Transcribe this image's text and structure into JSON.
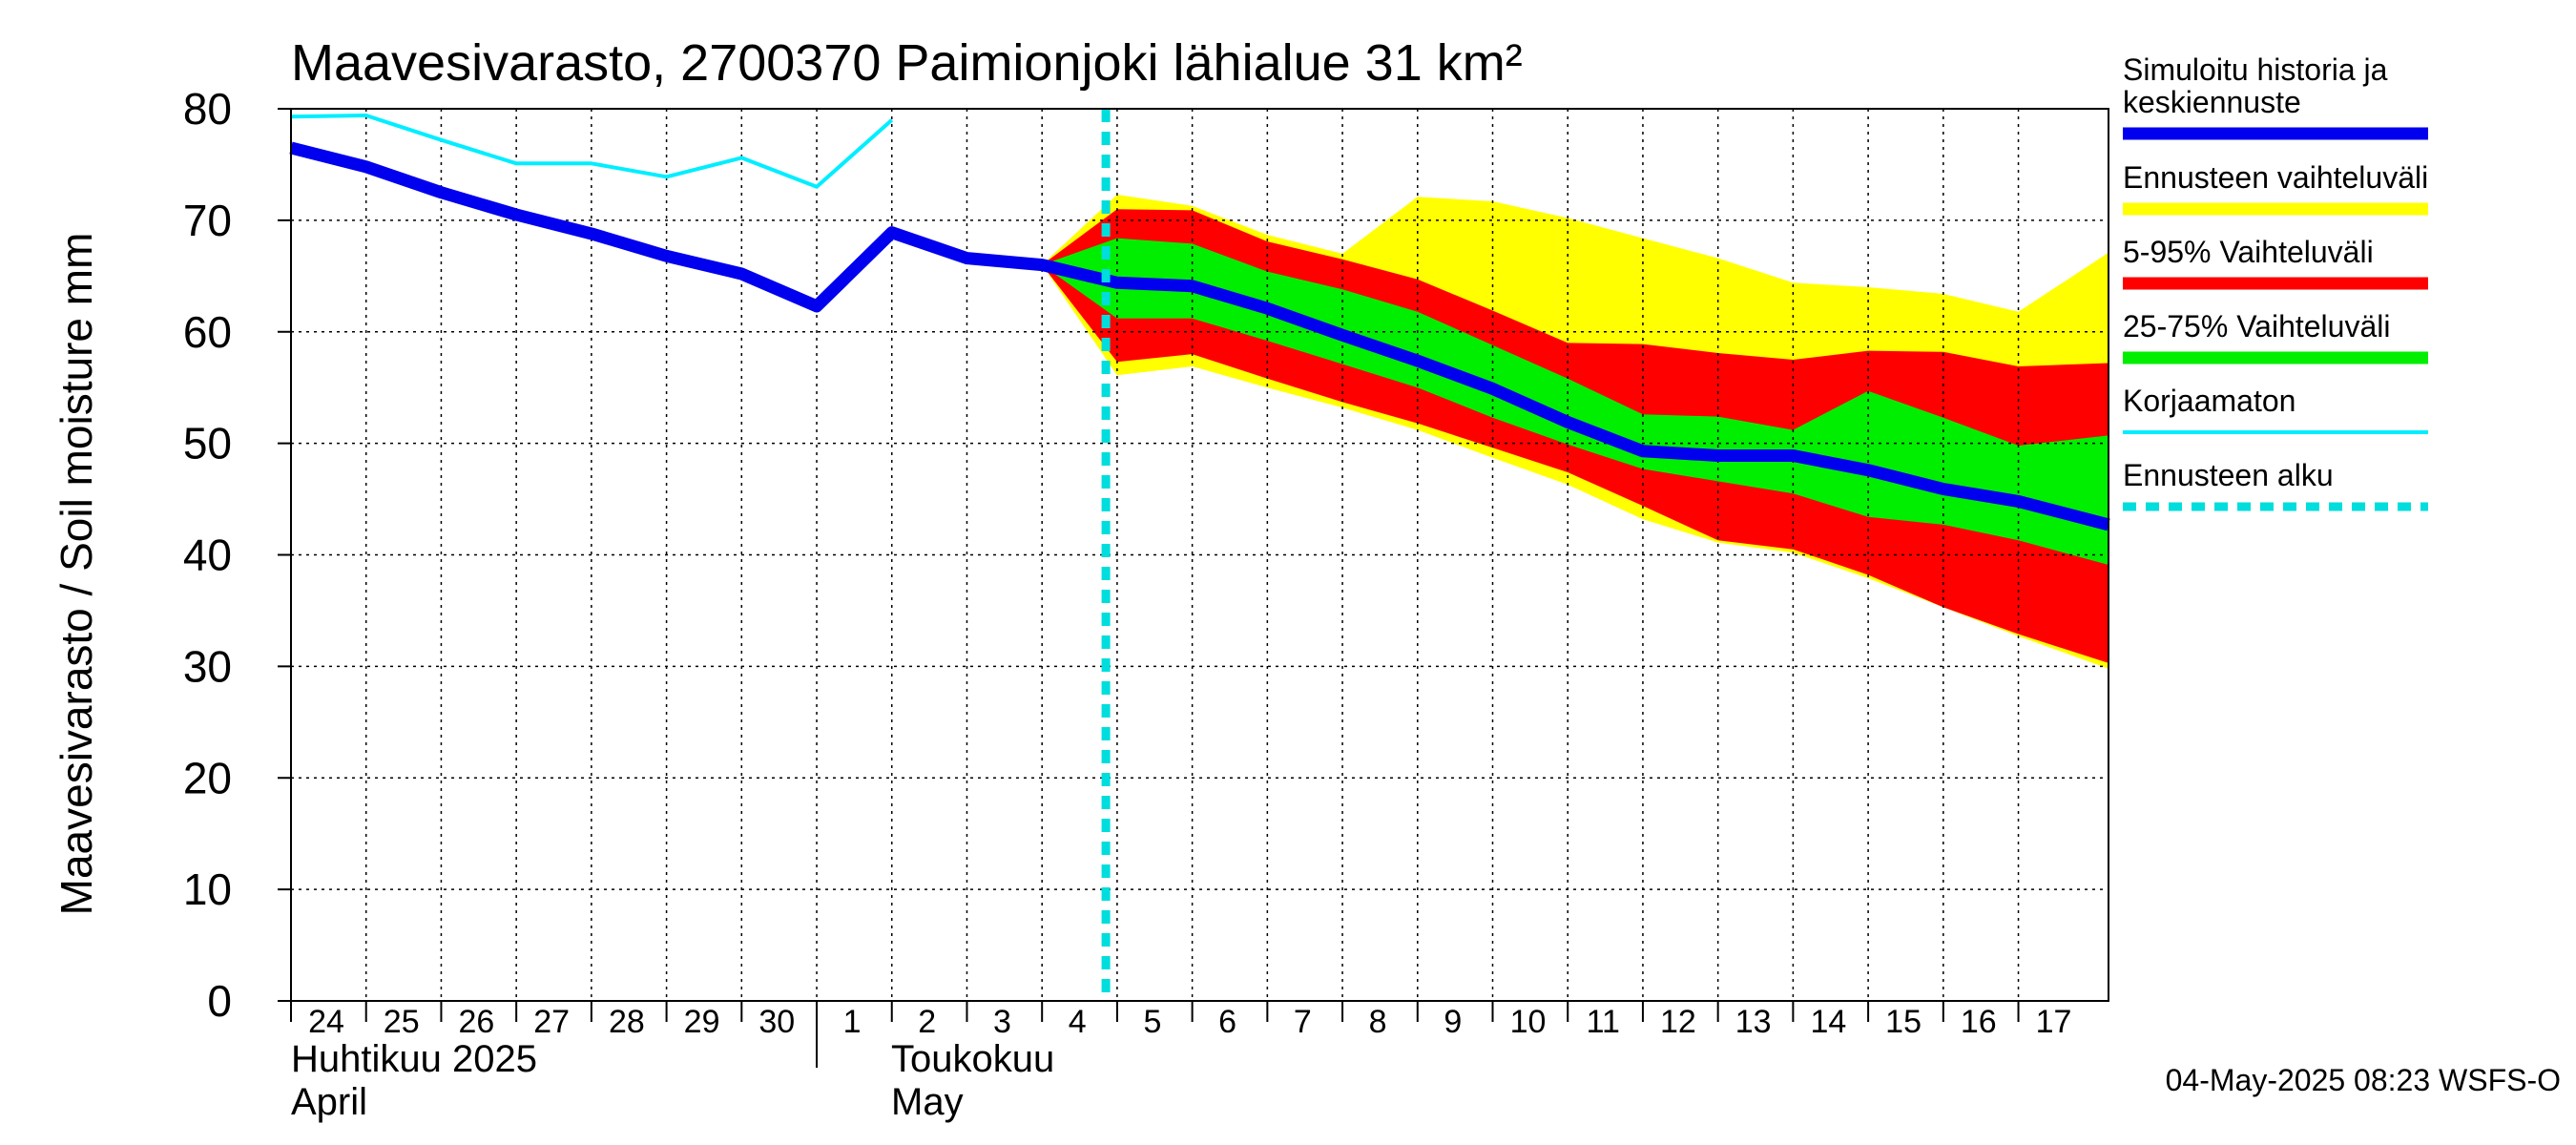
{
  "chart_data": {
    "type": "area",
    "title": "Maavesivarasto, 2700370 Paimionjoki lähialue 31 km²",
    "ylabel": "Maavesivarasto / Soil moisture   mm",
    "ylim": [
      0,
      80
    ],
    "yticks": [
      0,
      10,
      20,
      30,
      40,
      50,
      60,
      70,
      80
    ],
    "grid": true,
    "x_day_range": [
      24,
      48.2
    ],
    "day_ticks": [
      {
        "day": 24,
        "label": "24"
      },
      {
        "day": 25,
        "label": "25"
      },
      {
        "day": 26,
        "label": "26"
      },
      {
        "day": 27,
        "label": "27"
      },
      {
        "day": 28,
        "label": "28"
      },
      {
        "day": 29,
        "label": "29"
      },
      {
        "day": 30,
        "label": "30"
      },
      {
        "day": 31,
        "label": "1"
      },
      {
        "day": 32,
        "label": "2"
      },
      {
        "day": 33,
        "label": "3"
      },
      {
        "day": 34,
        "label": "4"
      },
      {
        "day": 35,
        "label": "5"
      },
      {
        "day": 36,
        "label": "6"
      },
      {
        "day": 37,
        "label": "7"
      },
      {
        "day": 38,
        "label": "8"
      },
      {
        "day": 39,
        "label": "9"
      },
      {
        "day": 40,
        "label": "10"
      },
      {
        "day": 41,
        "label": "11"
      },
      {
        "day": 42,
        "label": "12"
      },
      {
        "day": 43,
        "label": "13"
      },
      {
        "day": 44,
        "label": "14"
      },
      {
        "day": 45,
        "label": "15"
      },
      {
        "day": 46,
        "label": "16"
      },
      {
        "day": 47,
        "label": "17"
      }
    ],
    "months": [
      {
        "day": 24,
        "line1": "Huhtikuu  2025",
        "line2": "April"
      },
      {
        "day": 31.8,
        "line1": "Toukokuu",
        "line2": "May"
      }
    ],
    "month_boundary_day": 31,
    "forecast_start_day": 34.85,
    "colors": {
      "simulated": "#0000ee",
      "ensemble_range": "#ffff00",
      "p5_95": "#ff0000",
      "p25_75": "#00ee00",
      "uncorrected": "#00eeff",
      "forecast_start": "#00dddd",
      "grid": "#000000"
    },
    "series": [
      {
        "name": "simulated",
        "x": [
          24,
          25,
          26,
          27,
          28,
          29,
          30,
          31,
          32,
          33,
          34,
          35,
          36,
          37,
          38,
          39,
          40,
          41,
          42,
          43,
          44,
          45,
          46,
          47,
          48.2
        ],
        "values": [
          76.5,
          74.8,
          72.5,
          70.5,
          68.8,
          66.8,
          65.2,
          62.3,
          68.9,
          66.6,
          66.0,
          64.4,
          64.1,
          62.1,
          59.7,
          57.4,
          54.9,
          51.9,
          49.3,
          48.9,
          48.9,
          47.6,
          45.9,
          44.8,
          42.7
        ]
      },
      {
        "name": "uncorrected",
        "x": [
          24,
          25,
          26,
          27,
          28,
          29,
          30,
          31,
          32
        ],
        "values": [
          79.3,
          79.4,
          77.2,
          75.1,
          75.1,
          73.9,
          75.6,
          73.0,
          79.0
        ]
      }
    ],
    "bands": [
      {
        "name": "ensemble_range",
        "x": [
          34,
          35,
          36,
          37,
          38,
          39,
          40,
          41,
          42,
          43,
          44,
          45,
          46,
          47,
          48.2
        ],
        "upper": [
          66.0,
          72.3,
          71.3,
          68.7,
          67.0,
          72.1,
          71.7,
          70.2,
          68.4,
          66.6,
          64.4,
          64.0,
          63.4,
          61.8,
          67.1
        ],
        "lower": [
          66.0,
          56.1,
          56.9,
          55.0,
          53.2,
          51.2,
          48.7,
          46.3,
          43.2,
          41.1,
          40.2,
          37.9,
          35.3,
          32.7,
          29.8
        ]
      },
      {
        "name": "p5_95",
        "x": [
          34,
          35,
          36,
          37,
          38,
          39,
          40,
          41,
          42,
          43,
          44,
          45,
          46,
          47,
          48.2
        ],
        "upper": [
          66.0,
          71.0,
          70.9,
          68.1,
          66.5,
          64.7,
          61.9,
          59.0,
          58.9,
          58.1,
          57.5,
          58.3,
          58.2,
          56.9,
          57.2
        ],
        "lower": [
          66.0,
          57.3,
          58.0,
          55.8,
          53.7,
          51.8,
          49.6,
          47.4,
          44.4,
          41.3,
          40.5,
          38.2,
          35.3,
          32.9,
          30.3
        ]
      },
      {
        "name": "p25_75",
        "x": [
          34,
          35,
          36,
          37,
          38,
          39,
          40,
          41,
          42,
          43,
          44,
          45,
          46,
          47,
          48.2
        ],
        "upper": [
          66.0,
          68.4,
          67.9,
          65.4,
          63.8,
          61.8,
          58.8,
          55.8,
          52.6,
          52.4,
          51.2,
          54.7,
          52.3,
          49.8,
          50.7
        ],
        "lower": [
          66.0,
          61.2,
          61.2,
          59.2,
          57.1,
          55.0,
          52.3,
          49.9,
          47.7,
          46.6,
          45.5,
          43.4,
          42.7,
          41.3,
          39.1
        ]
      }
    ],
    "legend": [
      {
        "key": "simulated",
        "label_lines": [
          "Simuloitu historia ja",
          "keskiennuste"
        ],
        "style": "thick"
      },
      {
        "key": "ensemble_range",
        "label_lines": [
          "Ennusteen vaihteluväli"
        ],
        "style": "thick"
      },
      {
        "key": "p5_95",
        "label_lines": [
          "5-95% Vaihteluväli"
        ],
        "style": "thick"
      },
      {
        "key": "p25_75",
        "label_lines": [
          "25-75% Vaihteluväli"
        ],
        "style": "thick"
      },
      {
        "key": "uncorrected",
        "label_lines": [
          "Korjaamaton"
        ],
        "style": "thin"
      },
      {
        "key": "forecast_start",
        "label_lines": [
          "Ennusteen alku"
        ],
        "style": "dashed"
      }
    ],
    "legend_position": "right",
    "footer": "04-May-2025 08:23 WSFS-O"
  }
}
